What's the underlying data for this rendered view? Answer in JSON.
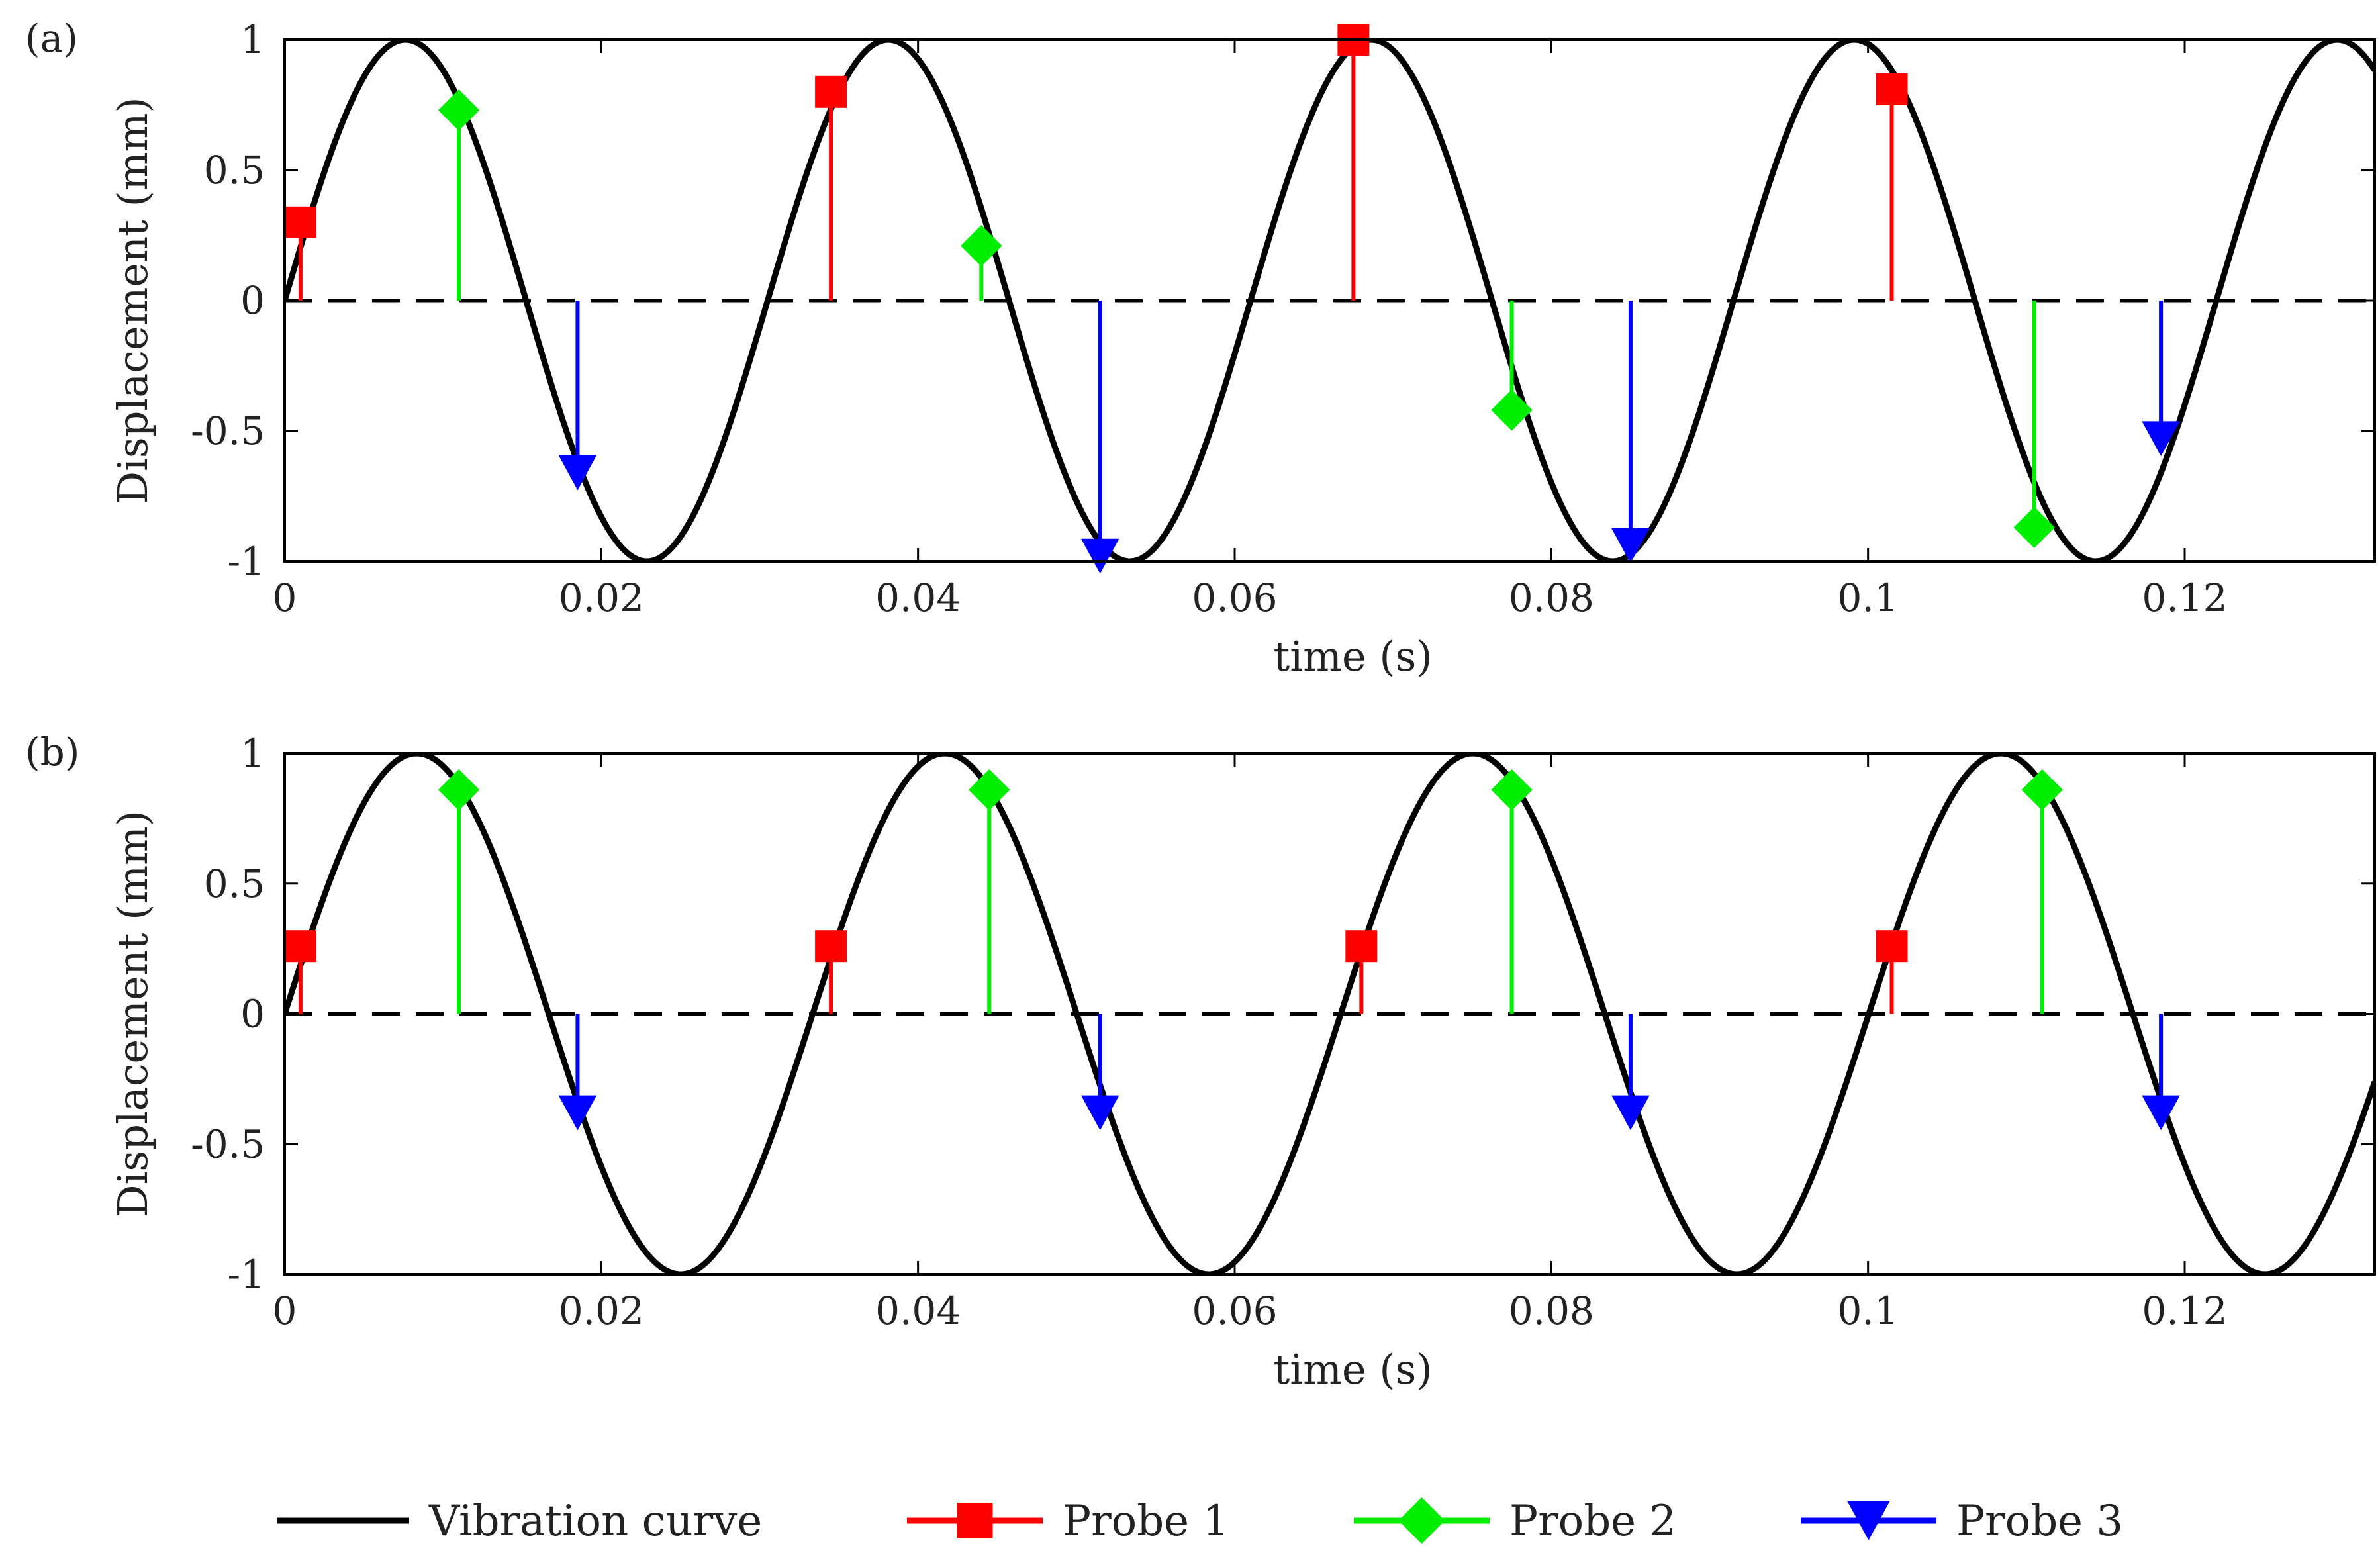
{
  "chart_data": [
    {
      "type": "line",
      "panel_label": "(a)",
      "xlabel": "time (s)",
      "ylabel": "Displacement (mm)",
      "xlim": [
        0,
        0.132
      ],
      "ylim": [
        -1,
        1
      ],
      "xticks": [
        0,
        0.02,
        0.04,
        0.06,
        0.08,
        0.1,
        0.12
      ],
      "xtick_labels": [
        "0",
        "0.02",
        "0.04",
        "0.06",
        "0.08",
        "0.1",
        "0.12"
      ],
      "yticks": [
        1,
        0.5,
        0,
        -0.5,
        -1
      ],
      "ytick_labels": [
        "1",
        "0.5",
        "0",
        "-0.5",
        "-1"
      ],
      "curve": {
        "name": "Vibration curve",
        "amplitude": 1,
        "period_s": 0.0305,
        "start_phase_s": 0,
        "color": "#000000"
      },
      "zero_line": true,
      "series": [
        {
          "name": "Probe 1",
          "marker": "square",
          "color": "#ff0000",
          "points": [
            [
              0.001,
              0.3
            ],
            [
              0.0345,
              0.8
            ],
            [
              0.0675,
              1.0
            ],
            [
              0.1015,
              0.81
            ]
          ]
        },
        {
          "name": "Probe 2",
          "marker": "diamond",
          "color": "#00ee00",
          "points": [
            [
              0.011,
              0.73
            ],
            [
              0.044,
              0.21
            ],
            [
              0.0775,
              -0.42
            ],
            [
              0.1105,
              -0.87
            ]
          ]
        },
        {
          "name": "Probe 3",
          "marker": "triangle-down",
          "color": "#0000ff",
          "points": [
            [
              0.0185,
              -0.66
            ],
            [
              0.0515,
              -0.98
            ],
            [
              0.085,
              -0.94
            ],
            [
              0.1185,
              -0.53
            ]
          ]
        }
      ]
    },
    {
      "type": "line",
      "panel_label": "(b)",
      "xlabel": "time (s)",
      "ylabel": "Displacement (mm)",
      "xlim": [
        0,
        0.132
      ],
      "ylim": [
        -1,
        1
      ],
      "xticks": [
        0,
        0.02,
        0.04,
        0.06,
        0.08,
        0.1,
        0.12
      ],
      "xtick_labels": [
        "0",
        "0.02",
        "0.04",
        "0.06",
        "0.08",
        "0.1",
        "0.12"
      ],
      "yticks": [
        1,
        0.5,
        0,
        -0.5,
        -1
      ],
      "ytick_labels": [
        "1",
        "0.5",
        "0",
        "-0.5",
        "-1"
      ],
      "curve": {
        "name": "Vibration curve",
        "amplitude": 1,
        "period_s": 0.03335,
        "start_phase_s": 0,
        "color": "#000000"
      },
      "zero_line": true,
      "series": [
        {
          "name": "Probe 1",
          "marker": "square",
          "color": "#ff0000",
          "points": [
            [
              0.001,
              0.26
            ],
            [
              0.0345,
              0.26
            ],
            [
              0.068,
              0.26
            ],
            [
              0.1015,
              0.26
            ]
          ]
        },
        {
          "name": "Probe 2",
          "marker": "diamond",
          "color": "#00ee00",
          "points": [
            [
              0.011,
              0.86
            ],
            [
              0.0445,
              0.86
            ],
            [
              0.0775,
              0.86
            ],
            [
              0.111,
              0.86
            ]
          ]
        },
        {
          "name": "Probe 3",
          "marker": "triangle-down",
          "color": "#0000ff",
          "points": [
            [
              0.0185,
              -0.38
            ],
            [
              0.0515,
              -0.38
            ],
            [
              0.085,
              -0.38
            ],
            [
              0.1185,
              -0.38
            ]
          ]
        }
      ]
    }
  ],
  "legend": {
    "placement": "bottom",
    "items": [
      {
        "label": "Vibration curve",
        "marker": "none",
        "color": "#000000"
      },
      {
        "label": "Probe 1",
        "marker": "square",
        "color": "#ff0000"
      },
      {
        "label": "Probe 2",
        "marker": "diamond",
        "color": "#00ee00"
      },
      {
        "label": "Probe 3",
        "marker": "triangle-down",
        "color": "#0000ff"
      }
    ]
  }
}
